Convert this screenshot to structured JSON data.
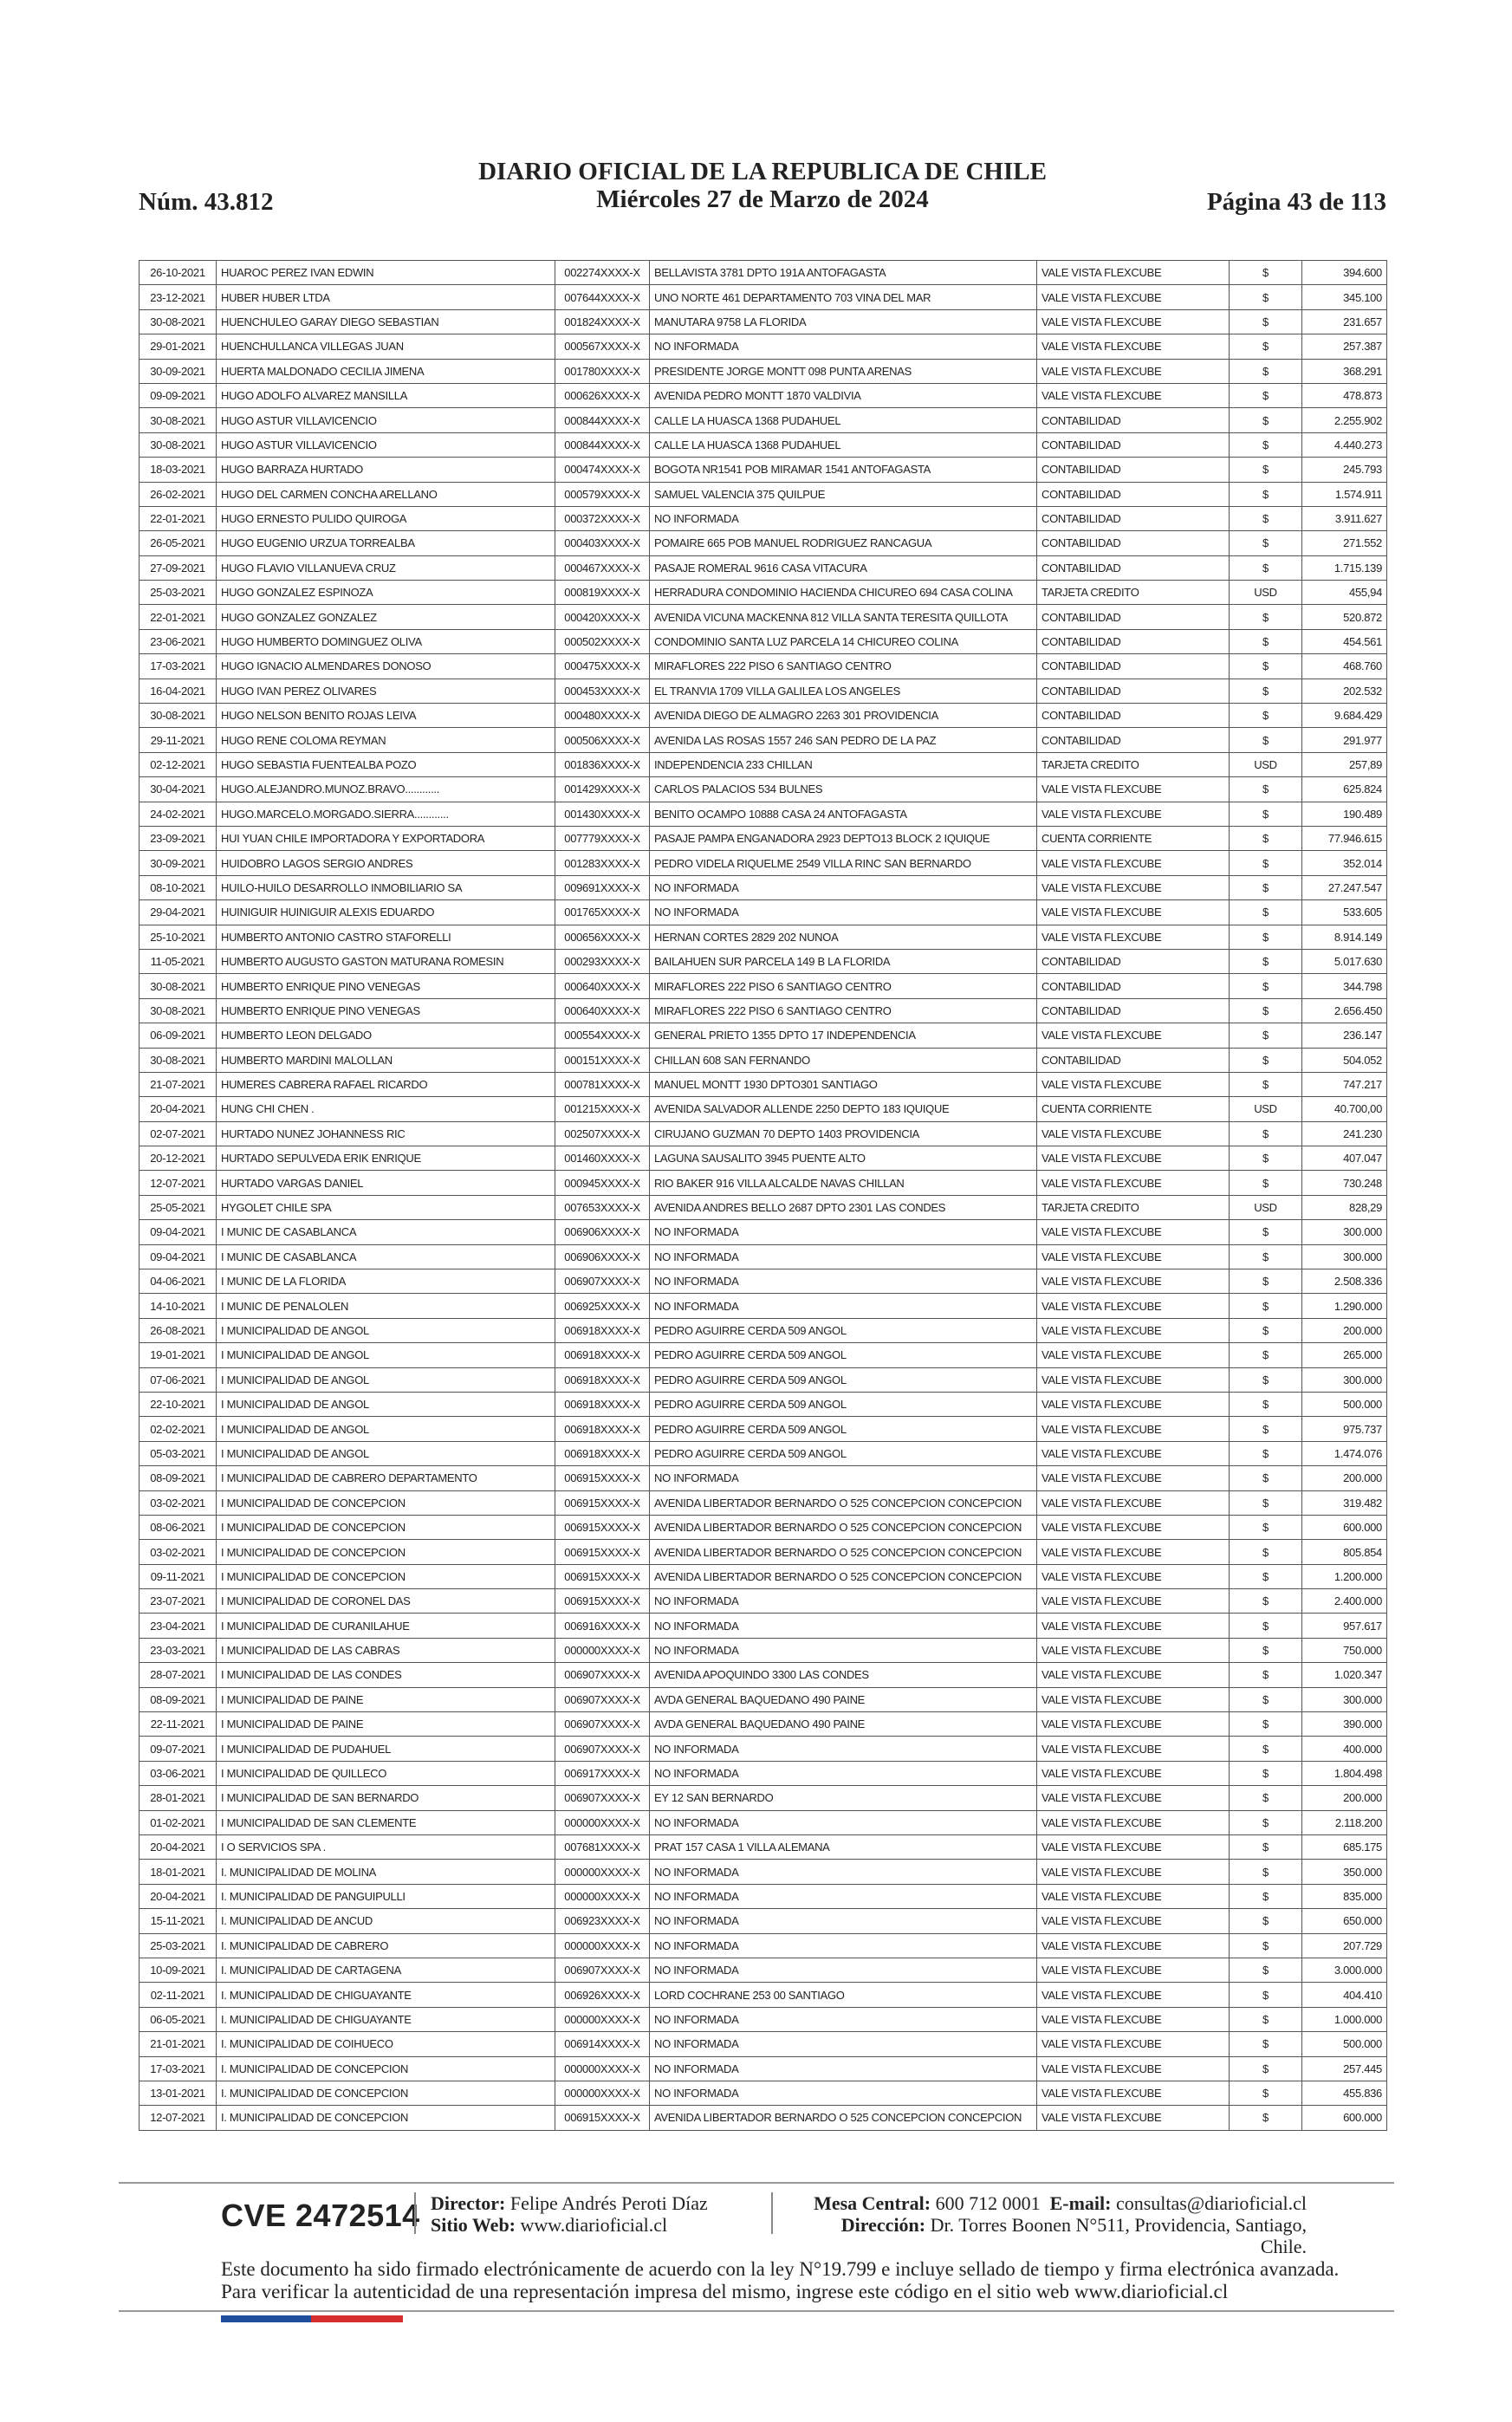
{
  "header": {
    "issue": "Núm. 43.812",
    "title": "DIARIO OFICIAL DE LA REPUBLICA DE CHILE",
    "date": "Miércoles 27 de Marzo de 2024",
    "page": "Página 43 de 113"
  },
  "table": {
    "rows": [
      [
        "26-10-2021",
        "HUAROC PEREZ IVAN EDWIN",
        "002274XXXX-X",
        "BELLAVISTA 3781 DPTO 191A ANTOFAGASTA",
        "VALE VISTA FLEXCUBE",
        "$",
        "394.600"
      ],
      [
        "23-12-2021",
        "HUBER HUBER LTDA",
        "007644XXXX-X",
        "UNO NORTE 461 DEPARTAMENTO 703 VINA DEL MAR",
        "VALE VISTA FLEXCUBE",
        "$",
        "345.100"
      ],
      [
        "30-08-2021",
        "HUENCHULEO GARAY DIEGO SEBASTIAN",
        "001824XXXX-X",
        "MANUTARA 9758 LA FLORIDA",
        "VALE VISTA FLEXCUBE",
        "$",
        "231.657"
      ],
      [
        "29-01-2021",
        "HUENCHULLANCA VILLEGAS JUAN",
        "000567XXXX-X",
        "NO INFORMADA",
        "VALE VISTA FLEXCUBE",
        "$",
        "257.387"
      ],
      [
        "30-09-2021",
        "HUERTA MALDONADO CECILIA JIMENA",
        "001780XXXX-X",
        "PRESIDENTE JORGE MONTT 098 PUNTA ARENAS",
        "VALE VISTA FLEXCUBE",
        "$",
        "368.291"
      ],
      [
        "09-09-2021",
        "HUGO ADOLFO ALVAREZ MANSILLA",
        "000626XXXX-X",
        "AVENIDA PEDRO MONTT 1870 VALDIVIA",
        "VALE VISTA FLEXCUBE",
        "$",
        "478.873"
      ],
      [
        "30-08-2021",
        "HUGO ASTUR VILLAVICENCIO",
        "000844XXXX-X",
        "CALLE LA HUASCA 1368 PUDAHUEL",
        "CONTABILIDAD",
        "$",
        "2.255.902"
      ],
      [
        "30-08-2021",
        "HUGO ASTUR VILLAVICENCIO",
        "000844XXXX-X",
        "CALLE LA HUASCA 1368 PUDAHUEL",
        "CONTABILIDAD",
        "$",
        "4.440.273"
      ],
      [
        "18-03-2021",
        "HUGO BARRAZA HURTADO",
        "000474XXXX-X",
        "BOGOTA NR1541 POB MIRAMAR 1541 ANTOFAGASTA",
        "CONTABILIDAD",
        "$",
        "245.793"
      ],
      [
        "26-02-2021",
        "HUGO DEL CARMEN CONCHA ARELLANO",
        "000579XXXX-X",
        "SAMUEL VALENCIA 375 QUILPUE",
        "CONTABILIDAD",
        "$",
        "1.574.911"
      ],
      [
        "22-01-2021",
        "HUGO ERNESTO PULIDO QUIROGA",
        "000372XXXX-X",
        "NO INFORMADA",
        "CONTABILIDAD",
        "$",
        "3.911.627"
      ],
      [
        "26-05-2021",
        "HUGO EUGENIO URZUA TORREALBA",
        "000403XXXX-X",
        "POMAIRE 665 POB MANUEL RODRIGUEZ RANCAGUA",
        "CONTABILIDAD",
        "$",
        "271.552"
      ],
      [
        "27-09-2021",
        "HUGO FLAVIO VILLANUEVA CRUZ",
        "000467XXXX-X",
        "PASAJE ROMERAL 9616 CASA VITACURA",
        "CONTABILIDAD",
        "$",
        "1.715.139"
      ],
      [
        "25-03-2021",
        "HUGO GONZALEZ ESPINOZA",
        "000819XXXX-X",
        "HERRADURA CONDOMINIO HACIENDA CHICUREO 694 CASA COLINA",
        "TARJETA CREDITO",
        "USD",
        "455,94"
      ],
      [
        "22-01-2021",
        "HUGO GONZALEZ GONZALEZ",
        "000420XXXX-X",
        "AVENIDA VICUNA MACKENNA 812 VILLA SANTA TERESITA QUILLOTA",
        "CONTABILIDAD",
        "$",
        "520.872"
      ],
      [
        "23-06-2021",
        "HUGO HUMBERTO DOMINGUEZ OLIVA",
        "000502XXXX-X",
        "CONDOMINIO SANTA LUZ PARCELA 14 CHICUREO COLINA",
        "CONTABILIDAD",
        "$",
        "454.561"
      ],
      [
        "17-03-2021",
        "HUGO IGNACIO ALMENDARES DONOSO",
        "000475XXXX-X",
        "MIRAFLORES 222 PISO 6 SANTIAGO CENTRO",
        "CONTABILIDAD",
        "$",
        "468.760"
      ],
      [
        "16-04-2021",
        "HUGO IVAN PEREZ OLIVARES",
        "000453XXXX-X",
        "EL TRANVIA 1709 VILLA GALILEA LOS ANGELES",
        "CONTABILIDAD",
        "$",
        "202.532"
      ],
      [
        "30-08-2021",
        "HUGO NELSON BENITO ROJAS LEIVA",
        "000480XXXX-X",
        "AVENIDA DIEGO DE ALMAGRO 2263 301 PROVIDENCIA",
        "CONTABILIDAD",
        "$",
        "9.684.429"
      ],
      [
        "29-11-2021",
        "HUGO RENE COLOMA REYMAN",
        "000506XXXX-X",
        "AVENIDA LAS ROSAS 1557 246 SAN PEDRO DE LA PAZ",
        "CONTABILIDAD",
        "$",
        "291.977"
      ],
      [
        "02-12-2021",
        "HUGO SEBASTIA FUENTEALBA POZO",
        "001836XXXX-X",
        "INDEPENDENCIA 233 CHILLAN",
        "TARJETA CREDITO",
        "USD",
        "257,89"
      ],
      [
        "30-04-2021",
        "HUGO.ALEJANDRO.MUNOZ.BRAVO............",
        "001429XXXX-X",
        "CARLOS PALACIOS 534 BULNES",
        "VALE VISTA FLEXCUBE",
        "$",
        "625.824"
      ],
      [
        "24-02-2021",
        "HUGO.MARCELO.MORGADO.SIERRA............",
        "001430XXXX-X",
        "BENITO OCAMPO 10888 CASA 24 ANTOFAGASTA",
        "VALE VISTA FLEXCUBE",
        "$",
        "190.489"
      ],
      [
        "23-09-2021",
        "HUI YUAN CHILE IMPORTADORA Y EXPORTADORA",
        "007779XXXX-X",
        "PASAJE PAMPA ENGANADORA 2923 DEPTO13 BLOCK 2 IQUIQUE",
        "CUENTA CORRIENTE",
        "$",
        "77.946.615"
      ],
      [
        "30-09-2021",
        "HUIDOBRO LAGOS SERGIO ANDRES",
        "001283XXXX-X",
        "PEDRO VIDELA RIQUELME 2549 VILLA RINC SAN BERNARDO",
        "VALE VISTA FLEXCUBE",
        "$",
        "352.014"
      ],
      [
        "08-10-2021",
        "HUILO-HUILO DESARROLLO INMOBILIARIO SA",
        "009691XXXX-X",
        "NO INFORMADA",
        "VALE VISTA FLEXCUBE",
        "$",
        "27.247.547"
      ],
      [
        "29-04-2021",
        "HUINIGUIR HUINIGUIR ALEXIS EDUARDO",
        "001765XXXX-X",
        "NO INFORMADA",
        "VALE VISTA FLEXCUBE",
        "$",
        "533.605"
      ],
      [
        "25-10-2021",
        "HUMBERTO ANTONIO CASTRO STAFORELLI",
        "000656XXXX-X",
        "HERNAN CORTES 2829 202 NUNOA",
        "VALE VISTA FLEXCUBE",
        "$",
        "8.914.149"
      ],
      [
        "11-05-2021",
        "HUMBERTO AUGUSTO GASTON MATURANA ROMESIN",
        "000293XXXX-X",
        "BAILAHUEN SUR PARCELA 149 B LA FLORIDA",
        "CONTABILIDAD",
        "$",
        "5.017.630"
      ],
      [
        "30-08-2021",
        "HUMBERTO ENRIQUE PINO VENEGAS",
        "000640XXXX-X",
        "MIRAFLORES 222 PISO 6 SANTIAGO CENTRO",
        "CONTABILIDAD",
        "$",
        "344.798"
      ],
      [
        "30-08-2021",
        "HUMBERTO ENRIQUE PINO VENEGAS",
        "000640XXXX-X",
        "MIRAFLORES 222 PISO 6 SANTIAGO CENTRO",
        "CONTABILIDAD",
        "$",
        "2.656.450"
      ],
      [
        "06-09-2021",
        "HUMBERTO LEON DELGADO",
        "000554XXXX-X",
        "GENERAL PRIETO 1355 DPTO 17 INDEPENDENCIA",
        "VALE VISTA FLEXCUBE",
        "$",
        "236.147"
      ],
      [
        "30-08-2021",
        "HUMBERTO MARDINI MALOLLAN",
        "000151XXXX-X",
        "CHILLAN 608 SAN FERNANDO",
        "CONTABILIDAD",
        "$",
        "504.052"
      ],
      [
        "21-07-2021",
        "HUMERES CABRERA RAFAEL RICARDO",
        "000781XXXX-X",
        "MANUEL MONTT 1930 DPTO301 SANTIAGO",
        "VALE VISTA FLEXCUBE",
        "$",
        "747.217"
      ],
      [
        "20-04-2021",
        "HUNG CHI CHEN .",
        "001215XXXX-X",
        "AVENIDA SALVADOR ALLENDE 2250 DEPTO 183 IQUIQUE",
        "CUENTA CORRIENTE",
        "USD",
        "40.700,00"
      ],
      [
        "02-07-2021",
        "HURTADO NUNEZ JOHANNESS RIC",
        "002507XXXX-X",
        "CIRUJANO GUZMAN 70 DEPTO 1403 PROVIDENCIA",
        "VALE VISTA FLEXCUBE",
        "$",
        "241.230"
      ],
      [
        "20-12-2021",
        "HURTADO SEPULVEDA ERIK ENRIQUE",
        "001460XXXX-X",
        "LAGUNA SAUSALITO 3945 PUENTE ALTO",
        "VALE VISTA FLEXCUBE",
        "$",
        "407.047"
      ],
      [
        "12-07-2021",
        "HURTADO VARGAS DANIEL",
        "000945XXXX-X",
        "RIO BAKER 916 VILLA ALCALDE NAVAS CHILLAN",
        "VALE VISTA FLEXCUBE",
        "$",
        "730.248"
      ],
      [
        "25-05-2021",
        "HYGOLET CHILE SPA",
        "007653XXXX-X",
        "AVENIDA ANDRES BELLO 2687 DPTO 2301 LAS CONDES",
        "TARJETA CREDITO",
        "USD",
        "828,29"
      ],
      [
        "09-04-2021",
        "I MUNIC DE CASABLANCA",
        "006906XXXX-X",
        "NO INFORMADA",
        "VALE VISTA FLEXCUBE",
        "$",
        "300.000"
      ],
      [
        "09-04-2021",
        "I MUNIC DE CASABLANCA",
        "006906XXXX-X",
        "NO INFORMADA",
        "VALE VISTA FLEXCUBE",
        "$",
        "300.000"
      ],
      [
        "04-06-2021",
        "I MUNIC DE LA FLORIDA",
        "006907XXXX-X",
        "NO INFORMADA",
        "VALE VISTA FLEXCUBE",
        "$",
        "2.508.336"
      ],
      [
        "14-10-2021",
        "I MUNIC DE PENALOLEN",
        "006925XXXX-X",
        "NO INFORMADA",
        "VALE VISTA FLEXCUBE",
        "$",
        "1.290.000"
      ],
      [
        "26-08-2021",
        "I MUNICIPALIDAD DE ANGOL",
        "006918XXXX-X",
        "PEDRO AGUIRRE CERDA 509 ANGOL",
        "VALE VISTA FLEXCUBE",
        "$",
        "200.000"
      ],
      [
        "19-01-2021",
        "I MUNICIPALIDAD DE ANGOL",
        "006918XXXX-X",
        "PEDRO AGUIRRE CERDA 509 ANGOL",
        "VALE VISTA FLEXCUBE",
        "$",
        "265.000"
      ],
      [
        "07-06-2021",
        "I MUNICIPALIDAD DE ANGOL",
        "006918XXXX-X",
        "PEDRO AGUIRRE CERDA 509 ANGOL",
        "VALE VISTA FLEXCUBE",
        "$",
        "300.000"
      ],
      [
        "22-10-2021",
        "I MUNICIPALIDAD DE ANGOL",
        "006918XXXX-X",
        "PEDRO AGUIRRE CERDA 509 ANGOL",
        "VALE VISTA FLEXCUBE",
        "$",
        "500.000"
      ],
      [
        "02-02-2021",
        "I MUNICIPALIDAD DE ANGOL",
        "006918XXXX-X",
        "PEDRO AGUIRRE CERDA 509 ANGOL",
        "VALE VISTA FLEXCUBE",
        "$",
        "975.737"
      ],
      [
        "05-03-2021",
        "I MUNICIPALIDAD DE ANGOL",
        "006918XXXX-X",
        "PEDRO AGUIRRE CERDA 509 ANGOL",
        "VALE VISTA FLEXCUBE",
        "$",
        "1.474.076"
      ],
      [
        "08-09-2021",
        "I MUNICIPALIDAD DE CABRERO DEPARTAMENTO",
        "006915XXXX-X",
        "NO INFORMADA",
        "VALE VISTA FLEXCUBE",
        "$",
        "200.000"
      ],
      [
        "03-02-2021",
        "I MUNICIPALIDAD DE CONCEPCION",
        "006915XXXX-X",
        "AVENIDA LIBERTADOR BERNARDO O 525 CONCEPCION CONCEPCION",
        "VALE VISTA FLEXCUBE",
        "$",
        "319.482"
      ],
      [
        "08-06-2021",
        "I MUNICIPALIDAD DE CONCEPCION",
        "006915XXXX-X",
        "AVENIDA LIBERTADOR BERNARDO O 525 CONCEPCION CONCEPCION",
        "VALE VISTA FLEXCUBE",
        "$",
        "600.000"
      ],
      [
        "03-02-2021",
        "I MUNICIPALIDAD DE CONCEPCION",
        "006915XXXX-X",
        "AVENIDA LIBERTADOR BERNARDO O 525 CONCEPCION CONCEPCION",
        "VALE VISTA FLEXCUBE",
        "$",
        "805.854"
      ],
      [
        "09-11-2021",
        "I MUNICIPALIDAD DE CONCEPCION",
        "006915XXXX-X",
        "AVENIDA LIBERTADOR BERNARDO O 525 CONCEPCION CONCEPCION",
        "VALE VISTA FLEXCUBE",
        "$",
        "1.200.000"
      ],
      [
        "23-07-2021",
        "I MUNICIPALIDAD DE CORONEL DAS",
        "006915XXXX-X",
        "NO INFORMADA",
        "VALE VISTA FLEXCUBE",
        "$",
        "2.400.000"
      ],
      [
        "23-04-2021",
        "I MUNICIPALIDAD DE CURANILAHUE",
        "006916XXXX-X",
        "NO INFORMADA",
        "VALE VISTA FLEXCUBE",
        "$",
        "957.617"
      ],
      [
        "23-03-2021",
        "I MUNICIPALIDAD DE LAS CABRAS",
        "000000XXXX-X",
        "NO INFORMADA",
        "VALE VISTA FLEXCUBE",
        "$",
        "750.000"
      ],
      [
        "28-07-2021",
        "I MUNICIPALIDAD DE LAS CONDES",
        "006907XXXX-X",
        "AVENIDA APOQUINDO 3300 LAS CONDES",
        "VALE VISTA FLEXCUBE",
        "$",
        "1.020.347"
      ],
      [
        "08-09-2021",
        "I MUNICIPALIDAD DE PAINE",
        "006907XXXX-X",
        "AVDA GENERAL BAQUEDANO 490 PAINE",
        "VALE VISTA FLEXCUBE",
        "$",
        "300.000"
      ],
      [
        "22-11-2021",
        "I MUNICIPALIDAD DE PAINE",
        "006907XXXX-X",
        "AVDA GENERAL BAQUEDANO 490 PAINE",
        "VALE VISTA FLEXCUBE",
        "$",
        "390.000"
      ],
      [
        "09-07-2021",
        "I MUNICIPALIDAD DE PUDAHUEL",
        "006907XXXX-X",
        "NO INFORMADA",
        "VALE VISTA FLEXCUBE",
        "$",
        "400.000"
      ],
      [
        "03-06-2021",
        "I MUNICIPALIDAD DE QUILLECO",
        "006917XXXX-X",
        "NO INFORMADA",
        "VALE VISTA FLEXCUBE",
        "$",
        "1.804.498"
      ],
      [
        "28-01-2021",
        "I MUNICIPALIDAD DE SAN BERNARDO",
        "006907XXXX-X",
        "EY 12 SAN BERNARDO",
        "VALE VISTA FLEXCUBE",
        "$",
        "200.000"
      ],
      [
        "01-02-2021",
        "I MUNICIPALIDAD DE SAN CLEMENTE",
        "000000XXXX-X",
        "NO INFORMADA",
        "VALE VISTA FLEXCUBE",
        "$",
        "2.118.200"
      ],
      [
        "20-04-2021",
        "I O SERVICIOS SPA .",
        "007681XXXX-X",
        "PRAT 157 CASA 1 VILLA ALEMANA",
        "VALE VISTA FLEXCUBE",
        "$",
        "685.175"
      ],
      [
        "18-01-2021",
        "I. MUNICIPALIDAD DE MOLINA",
        "000000XXXX-X",
        "NO INFORMADA",
        "VALE VISTA FLEXCUBE",
        "$",
        "350.000"
      ],
      [
        "20-04-2021",
        "I. MUNICIPALIDAD DE PANGUIPULLI",
        "000000XXXX-X",
        "NO INFORMADA",
        "VALE VISTA FLEXCUBE",
        "$",
        "835.000"
      ],
      [
        "15-11-2021",
        "I. MUNICIPALIDAD DE ANCUD",
        "006923XXXX-X",
        "NO INFORMADA",
        "VALE VISTA FLEXCUBE",
        "$",
        "650.000"
      ],
      [
        "25-03-2021",
        "I. MUNICIPALIDAD DE CABRERO",
        "000000XXXX-X",
        "NO INFORMADA",
        "VALE VISTA FLEXCUBE",
        "$",
        "207.729"
      ],
      [
        "10-09-2021",
        "I. MUNICIPALIDAD DE CARTAGENA",
        "006907XXXX-X",
        "NO INFORMADA",
        "VALE VISTA FLEXCUBE",
        "$",
        "3.000.000"
      ],
      [
        "02-11-2021",
        "I. MUNICIPALIDAD DE CHIGUAYANTE",
        "006926XXXX-X",
        "LORD COCHRANE 253 00 SANTIAGO",
        "VALE VISTA FLEXCUBE",
        "$",
        "404.410"
      ],
      [
        "06-05-2021",
        "I. MUNICIPALIDAD DE CHIGUAYANTE",
        "000000XXXX-X",
        "NO INFORMADA",
        "VALE VISTA FLEXCUBE",
        "$",
        "1.000.000"
      ],
      [
        "21-01-2021",
        "I. MUNICIPALIDAD DE COIHUECO",
        "006914XXXX-X",
        "NO INFORMADA",
        "VALE VISTA FLEXCUBE",
        "$",
        "500.000"
      ],
      [
        "17-03-2021",
        "I. MUNICIPALIDAD DE CONCEPCION",
        "000000XXXX-X",
        "NO INFORMADA",
        "VALE VISTA FLEXCUBE",
        "$",
        "257.445"
      ],
      [
        "13-01-2021",
        "I. MUNICIPALIDAD DE CONCEPCION",
        "000000XXXX-X",
        "NO INFORMADA",
        "VALE VISTA FLEXCUBE",
        "$",
        "455.836"
      ],
      [
        "12-07-2021",
        "I. MUNICIPALIDAD DE CONCEPCION",
        "006915XXXX-X",
        "AVENIDA LIBERTADOR BERNARDO O 525 CONCEPCION CONCEPCION",
        "VALE VISTA FLEXCUBE",
        "$",
        "600.000"
      ]
    ]
  },
  "footer": {
    "cve": "CVE 2472514",
    "director_label": "Director:",
    "director": "Felipe Andrés Peroti Díaz",
    "web_label": "Sitio Web:",
    "web": "www.diarioficial.cl",
    "phone_label": "Mesa Central:",
    "phone": "600 712 0001",
    "email_label": "E-mail:",
    "email": "consultas@diarioficial.cl",
    "address_label": "Dirección:",
    "address": "Dr. Torres Boonen N°511, Providencia, Santiago, Chile.",
    "note": "Este documento ha sido firmado electrónicamente de acuerdo con la ley N°19.799 e incluye sellado de tiempo y firma electrónica avanzada. Para verificar la autenticidad de una representación impresa del mismo, ingrese este código en el sitio web www.diarioficial.cl"
  }
}
